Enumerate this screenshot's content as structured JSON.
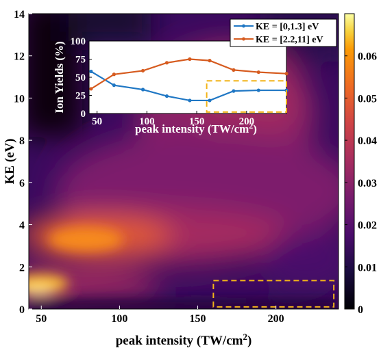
{
  "chart_data": [
    {
      "type": "heatmap",
      "xlabel": "peak intensity (TW/cm",
      "xlabel_sup": "2",
      "xlabel_end": ")",
      "ylabel": "KE (eV)",
      "xlim": [
        42,
        240
      ],
      "ylim": [
        0,
        14
      ],
      "xticks": [
        50,
        100,
        150,
        200
      ],
      "yticks": [
        0,
        2,
        4,
        6,
        8,
        10,
        12,
        14
      ],
      "colorbar": {
        "colormap": "inferno",
        "range": [
          0,
          0.07
        ],
        "ticks": [
          0,
          0.01,
          0.02,
          0.03,
          0.04,
          0.05,
          0.06
        ],
        "tick_labels": [
          "0",
          "0.01",
          "0.02",
          "0.03",
          "0.04",
          "0.05",
          "0.06"
        ]
      },
      "highlight_box": {
        "x": [
          160,
          237
        ],
        "y": [
          0.1,
          1.35
        ],
        "color": "#f2b418",
        "style": "dashed"
      }
    },
    {
      "type": "line",
      "xlabel": "peak intensity (TW/cm",
      "xlabel_sup": "2",
      "xlabel_end": ")",
      "ylabel": "Ion Yields (%)",
      "xlim": [
        42,
        240
      ],
      "ylim": [
        0,
        100
      ],
      "xticks": [
        50,
        100,
        150,
        200
      ],
      "yticks": [
        0,
        25,
        50,
        75,
        100
      ],
      "legend_position": "top-right",
      "series": [
        {
          "name": "KE = [0,1.3] eV",
          "color": "#1f77c4",
          "x": [
            44,
            67,
            96,
            120,
            143,
            163,
            187,
            212,
            240
          ],
          "y": [
            58,
            39,
            33,
            24,
            18,
            18,
            31,
            32,
            32
          ]
        },
        {
          "name": "KE = [2.2,11] eV",
          "color": "#d65b1f",
          "x": [
            44,
            67,
            96,
            120,
            143,
            163,
            187,
            212,
            240
          ],
          "y": [
            34,
            54,
            59,
            70,
            75,
            73,
            60,
            57,
            55
          ]
        }
      ],
      "highlight_box": {
        "x": [
          160,
          240
        ],
        "y": [
          2,
          45
        ],
        "color": "#f2b418",
        "style": "dashed"
      }
    }
  ]
}
